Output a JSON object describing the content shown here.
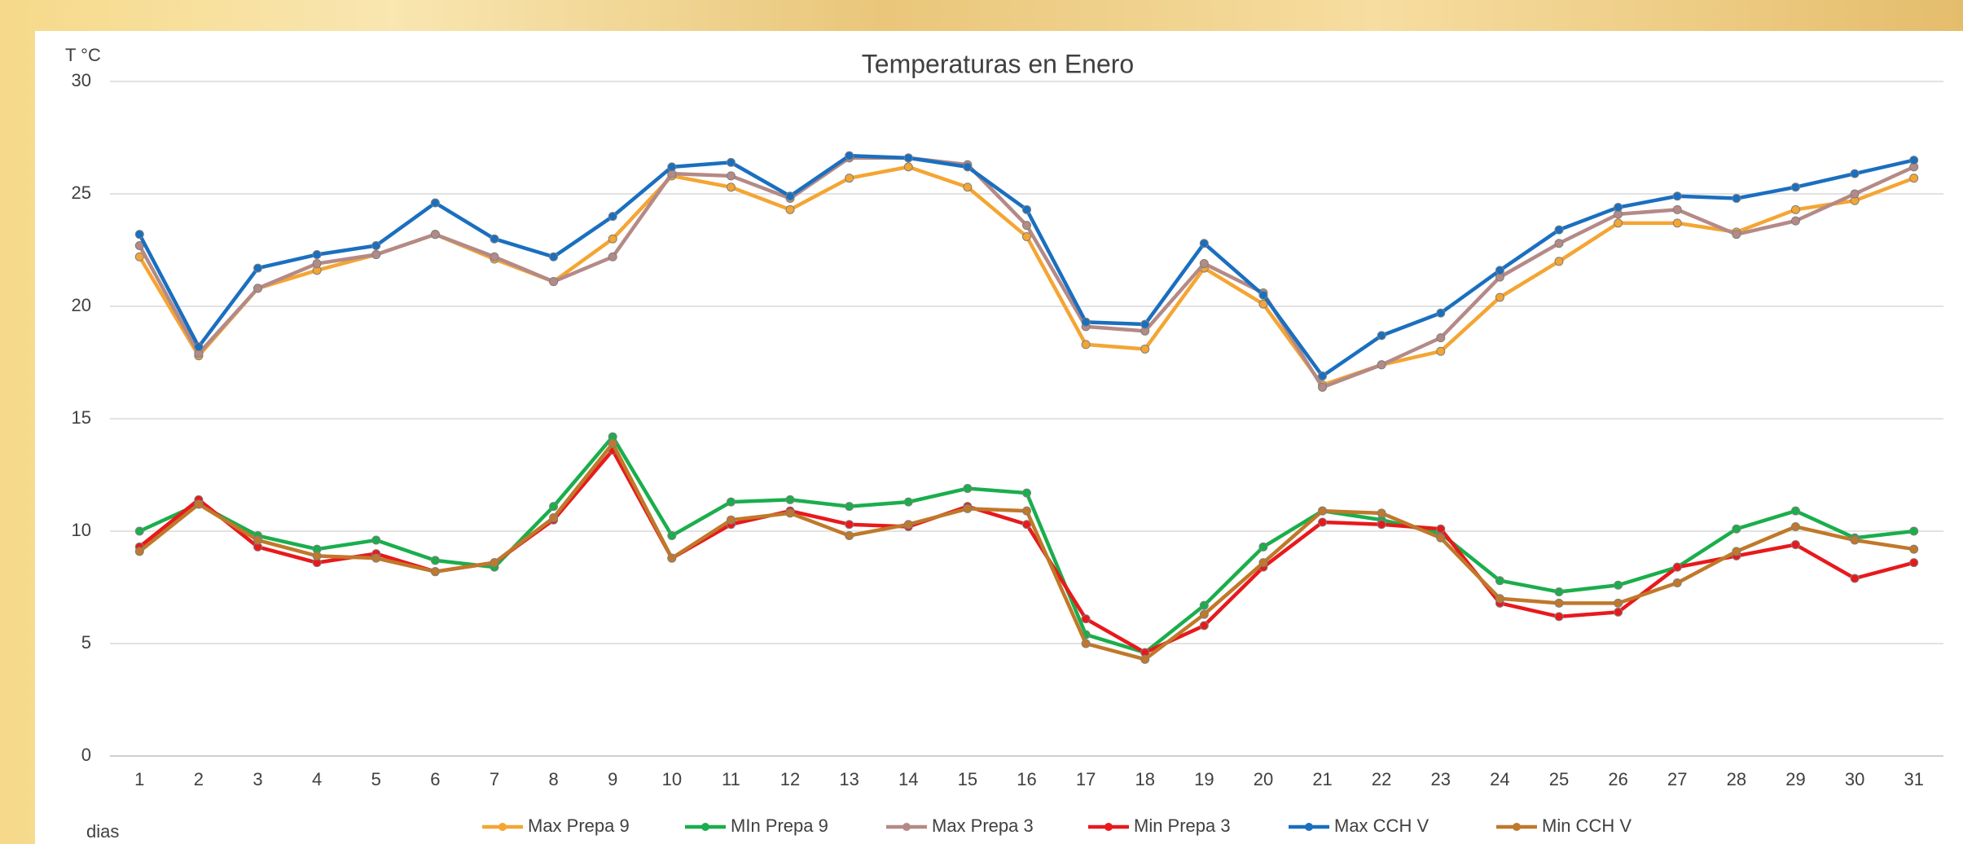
{
  "chart_data": {
    "type": "line",
    "title": "Temperaturas en Enero",
    "y_label": "T °C",
    "x_label": "dias",
    "categories": [
      "1",
      "2",
      "3",
      "4",
      "5",
      "6",
      "7",
      "8",
      "9",
      "10",
      "11",
      "12",
      "13",
      "14",
      "15",
      "16",
      "17",
      "18",
      "19",
      "20",
      "21",
      "22",
      "23",
      "24",
      "25",
      "26",
      "27",
      "28",
      "29",
      "30",
      "31"
    ],
    "series": [
      {
        "name": "Max Prepa 9",
        "color": "#f4a533",
        "values": [
          22.2,
          17.8,
          20.8,
          21.6,
          22.3,
          23.2,
          22.1,
          21.1,
          23.0,
          25.8,
          25.3,
          24.3,
          25.7,
          26.2,
          25.3,
          23.1,
          18.3,
          18.1,
          21.7,
          20.1,
          16.5,
          17.4,
          18.0,
          20.4,
          22.0,
          23.7,
          23.7,
          23.3,
          24.3,
          24.7,
          25.7
        ]
      },
      {
        "name": "MIn Prepa 9",
        "color": "#1aae4c",
        "values": [
          10.0,
          11.2,
          9.8,
          9.2,
          9.6,
          8.7,
          8.4,
          11.1,
          14.2,
          9.8,
          11.3,
          11.4,
          11.1,
          11.3,
          11.9,
          11.7,
          5.4,
          4.6,
          6.7,
          9.3,
          10.9,
          10.5,
          9.9,
          7.8,
          7.3,
          7.6,
          8.4,
          10.1,
          10.9,
          9.7,
          10.0
        ]
      },
      {
        "name": "Max Prepa 3",
        "color": "#b48a86",
        "values": [
          22.7,
          17.9,
          20.8,
          21.9,
          22.3,
          23.2,
          22.2,
          21.1,
          22.2,
          25.9,
          25.8,
          24.8,
          26.6,
          26.6,
          26.3,
          23.6,
          19.1,
          18.9,
          21.9,
          20.6,
          16.4,
          17.4,
          18.6,
          21.3,
          22.8,
          24.1,
          24.3,
          23.2,
          23.8,
          25.0,
          26.2
        ]
      },
      {
        "name": "Min Prepa 3",
        "color": "#e8191c",
        "values": [
          9.3,
          11.4,
          9.3,
          8.6,
          9.0,
          8.2,
          8.6,
          10.5,
          13.6,
          8.8,
          10.3,
          10.9,
          10.3,
          10.2,
          11.1,
          10.3,
          6.1,
          4.6,
          5.8,
          8.4,
          10.4,
          10.3,
          10.1,
          6.8,
          6.2,
          6.4,
          8.4,
          8.9,
          9.4,
          7.9,
          8.6
        ]
      },
      {
        "name": "Max CCH V",
        "color": "#1a6fbf",
        "values": [
          23.2,
          18.2,
          21.7,
          22.3,
          22.7,
          24.6,
          23.0,
          22.2,
          24.0,
          26.2,
          26.4,
          24.9,
          26.7,
          26.6,
          26.2,
          24.3,
          19.3,
          19.2,
          22.8,
          20.5,
          16.9,
          18.7,
          19.7,
          21.6,
          23.4,
          24.4,
          24.9,
          24.8,
          25.3,
          25.9,
          26.5
        ]
      },
      {
        "name": "Min CCH V",
        "color": "#c0782a",
        "values": [
          9.1,
          11.2,
          9.6,
          8.9,
          8.8,
          8.2,
          8.6,
          10.6,
          13.9,
          8.8,
          10.5,
          10.8,
          9.8,
          10.3,
          11.0,
          10.9,
          5.0,
          4.3,
          6.3,
          8.6,
          10.9,
          10.8,
          9.7,
          7.0,
          6.8,
          6.8,
          7.7,
          9.1,
          10.2,
          9.6,
          9.2
        ]
      }
    ],
    "ylim": [
      0,
      30
    ],
    "yticks": [
      0,
      5,
      10,
      15,
      20,
      25,
      30
    ],
    "grid": true,
    "legend": "bottom"
  }
}
